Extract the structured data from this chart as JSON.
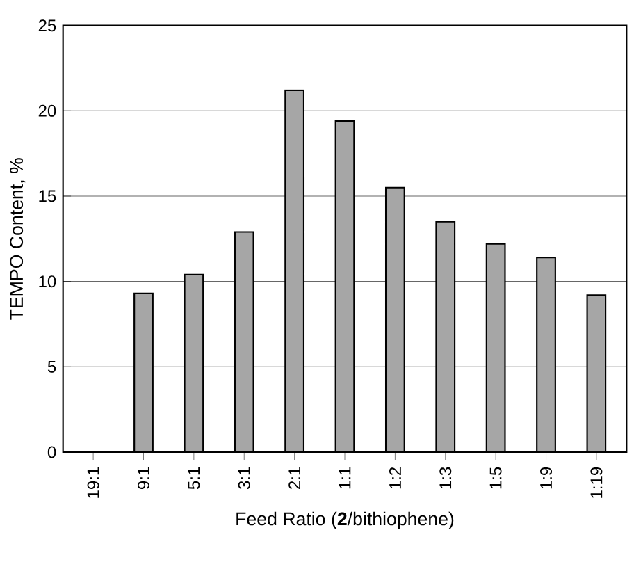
{
  "chart_data": {
    "type": "bar",
    "xlabel": "Feed Ratio (**2**/bithiophene)",
    "ylabel": "TEMPO Content, %",
    "categories": [
      "19:1",
      "9:1",
      "5:1",
      "3:1",
      "2:1",
      "1:1",
      "1:2",
      "1:3",
      "1:5",
      "1:9",
      "1:19"
    ],
    "values": [
      0,
      9.3,
      10.4,
      12.9,
      21.2,
      19.4,
      15.5,
      13.5,
      12.2,
      11.4,
      9.2
    ],
    "color": "#a6a6a6",
    "ylim": [
      0,
      25
    ],
    "yticks": [
      0,
      5,
      10,
      15,
      20,
      25
    ],
    "grid": "y"
  }
}
